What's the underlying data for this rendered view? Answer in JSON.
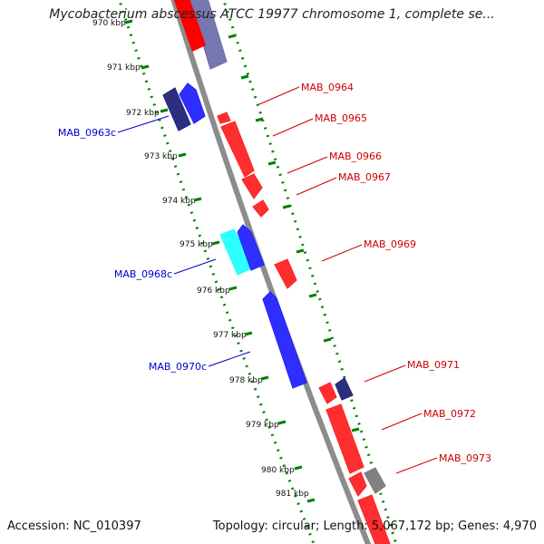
{
  "title": "Mycobacterium abscessus ATCC 19977 chromosome 1, complete se...",
  "footer": {
    "accession": "Accession: NC_010397",
    "stats": "Topology: circular; Length: 5,067,172 bp; Genes: 4,970"
  },
  "colors": {
    "forward_gene": "#ff0000",
    "reverse_gene": "#0000ff",
    "reverse_gene_dark": "#000066",
    "reverse_gene_cyan": "#00ffff",
    "other_gene": "#666666",
    "backbone": "#8c8c8c",
    "ruler": "#008000",
    "forward_label": "#cc0000",
    "reverse_label": "#0000cc"
  },
  "ruler": {
    "ticks": [
      {
        "kbp": 970,
        "label": "970 kbp"
      },
      {
        "kbp": 971,
        "label": "971 kbp"
      },
      {
        "kbp": 972,
        "label": "972 kbp"
      },
      {
        "kbp": 973,
        "label": "973 kbp"
      },
      {
        "kbp": 974,
        "label": "974 kbp"
      },
      {
        "kbp": 975,
        "label": "975 kbp"
      },
      {
        "kbp": 976,
        "label": "976 kbp"
      },
      {
        "kbp": 977,
        "label": "977 kbp"
      },
      {
        "kbp": 978,
        "label": "978 kbp"
      },
      {
        "kbp": 979,
        "label": "979 kbp"
      },
      {
        "kbp": 980,
        "label": "980 kbp"
      },
      {
        "kbp": 981,
        "label": "981 kbp"
      }
    ]
  },
  "genes": [
    {
      "name": "",
      "strand": "forward",
      "color": "other_gene",
      "labeled": false
    },
    {
      "name": "MAB_0963c",
      "strand": "reverse",
      "color": "reverse_gene_dark",
      "labeled": true
    },
    {
      "name": "",
      "strand": "reverse",
      "color": "reverse_gene",
      "labeled": false
    },
    {
      "name": "MAB_0964",
      "strand": "forward",
      "color": "forward_gene",
      "labeled": true
    },
    {
      "name": "MAB_0965",
      "strand": "forward",
      "color": "forward_gene",
      "labeled": true
    },
    {
      "name": "MAB_0966",
      "strand": "forward",
      "color": "forward_gene",
      "labeled": true
    },
    {
      "name": "MAB_0967",
      "strand": "forward",
      "color": "forward_gene",
      "labeled": true
    },
    {
      "name": "MAB_0968c",
      "strand": "reverse",
      "color": "reverse_gene_cyan",
      "labeled": true
    },
    {
      "name": "",
      "strand": "reverse",
      "color": "reverse_gene",
      "labeled": false
    },
    {
      "name": "MAB_0969",
      "strand": "forward",
      "color": "forward_gene",
      "labeled": true
    },
    {
      "name": "MAB_0970c",
      "strand": "reverse",
      "color": "reverse_gene",
      "labeled": true
    },
    {
      "name": "MAB_0971",
      "strand": "forward",
      "color": "forward_gene",
      "labeled": true
    },
    {
      "name": "",
      "strand": "reverse",
      "color": "reverse_gene_dark",
      "labeled": false
    },
    {
      "name": "MAB_0972",
      "strand": "forward",
      "color": "forward_gene",
      "labeled": true
    },
    {
      "name": "MAB_0973",
      "strand": "forward",
      "color": "forward_gene",
      "labeled": true
    },
    {
      "name": "",
      "strand": "forward",
      "color": "other_gene",
      "labeled": false
    },
    {
      "name": "",
      "strand": "forward",
      "color": "forward_gene",
      "labeled": false
    }
  ]
}
